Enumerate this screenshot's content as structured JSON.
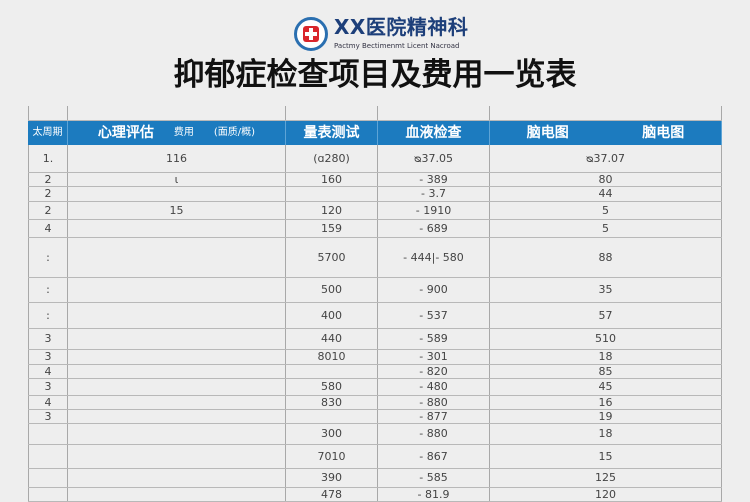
{
  "header": {
    "hospital_name": "XX医院精神科",
    "hospital_subtitle": "Pactmy Bectimenmt Licent Nacroad",
    "title": "抑郁症检查项目及费用一览表",
    "accent_color": "#1c7bbf"
  },
  "table": {
    "columns": {
      "c1": "太周期",
      "c2_main": "心理评估",
      "c2_fee": "费用",
      "c2_unit": "(面质/概)",
      "c3": "量表测试",
      "c4": "血液检查",
      "c5a": "脑电图",
      "c5b": "脑电图"
    },
    "rows": [
      [
        "1.",
        "116",
        "(ɑ280)",
        "ᴓ37.05",
        "ᴓ37.07"
      ],
      [
        "2",
        "ι",
        "160",
        "- 389",
        "80"
      ],
      [
        "2",
        "",
        "",
        "- 3.7",
        "44"
      ],
      [
        "2",
        "15",
        "120",
        "- 1910",
        "5"
      ],
      [
        "4",
        "",
        "159",
        "- 689",
        "5"
      ],
      [
        ":",
        "",
        "5700",
        "- 444|- 580",
        "88"
      ],
      [
        ":",
        "",
        "500",
        "- 900",
        "35"
      ],
      [
        ":",
        "",
        "400",
        "- 537",
        "57"
      ],
      [
        "3",
        "",
        "440",
        "- 589",
        "510"
      ],
      [
        "3",
        "",
        "8010",
        "- 301",
        "18"
      ],
      [
        "4",
        "",
        "",
        "- 820",
        "85"
      ],
      [
        "3",
        "",
        "580",
        "- 480",
        "45"
      ],
      [
        "4",
        "",
        "830",
        "- 880",
        "16"
      ],
      [
        "3",
        "",
        "",
        "- 877",
        "19"
      ],
      [
        "",
        "",
        "300",
        "- 880",
        "18"
      ],
      [
        "",
        "",
        "7010",
        "- 867",
        "15"
      ],
      [
        "",
        "",
        "390",
        "- 585",
        "125"
      ],
      [
        "",
        "",
        "478",
        "- 81.9",
        "120"
      ]
    ]
  }
}
